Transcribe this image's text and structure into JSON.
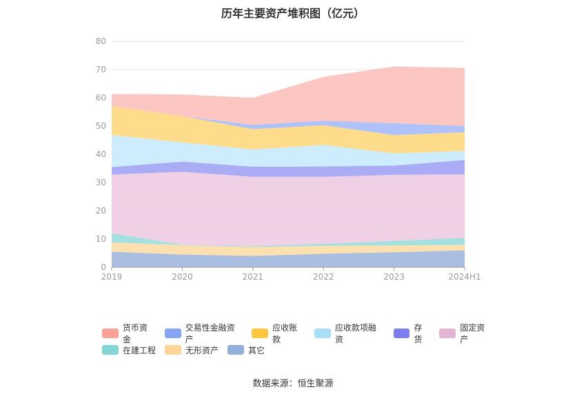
{
  "page": {
    "title": "历年主要资产堆积图（亿元）",
    "source": "数据来源：恒生聚源"
  },
  "chart_data": {
    "type": "area",
    "stacked": true,
    "title": "历年主要资产堆积图（亿元）",
    "xlabel": "",
    "ylabel": "",
    "categories": [
      "2019",
      "2020",
      "2021",
      "2022",
      "2023",
      "2024H1"
    ],
    "ylim": [
      0,
      80
    ],
    "yticks": [
      0,
      10,
      20,
      30,
      40,
      50,
      60,
      70,
      80
    ],
    "grid": true,
    "legend_position": "bottom",
    "series": [
      {
        "name": "其它",
        "color": "#9bb3dc",
        "values": [
          5.5,
          4.5,
          4.0,
          4.8,
          5.3,
          6.0
        ]
      },
      {
        "name": "无形资产",
        "color": "#fddba1",
        "values": [
          3.3,
          3.3,
          3.1,
          2.8,
          2.4,
          1.9
        ]
      },
      {
        "name": "在建工程",
        "color": "#95dbdb",
        "values": [
          3.2,
          0.2,
          0.3,
          0.7,
          1.6,
          2.5
        ]
      },
      {
        "name": "固定资产",
        "color": "#ecc8e0",
        "values": [
          20.8,
          25.8,
          24.6,
          23.7,
          23.4,
          22.5
        ]
      },
      {
        "name": "存货",
        "color": "#9b9ef5",
        "values": [
          2.7,
          3.6,
          3.6,
          3.7,
          3.3,
          5.1
        ]
      },
      {
        "name": "应收款项融资",
        "color": "#c5eafb",
        "values": [
          11.3,
          6.8,
          6.1,
          7.6,
          4.3,
          3.2
        ]
      },
      {
        "name": "应收账款",
        "color": "#fed677",
        "values": [
          10.3,
          9.3,
          7.2,
          7.0,
          6.5,
          6.6
        ]
      },
      {
        "name": "交易性金融资产",
        "color": "#a1b7f8",
        "values": [
          0,
          0,
          1.5,
          1.6,
          4.2,
          2.2
        ]
      },
      {
        "name": "货币资金",
        "color": "#fcbdb7",
        "values": [
          4.2,
          7.7,
          9.6,
          15.5,
          20.1,
          20.6
        ]
      }
    ],
    "legend": [
      {
        "name": "货币资金",
        "color": "#f8a298"
      },
      {
        "name": "交易性金融资产",
        "color": "#87a5f5"
      },
      {
        "name": "应收账款",
        "color": "#fec53f"
      },
      {
        "name": "应收款项融资",
        "color": "#a8e0fa"
      },
      {
        "name": "存货",
        "color": "#7c7ef0"
      },
      {
        "name": "固定资产",
        "color": "#e3b4d4"
      },
      {
        "name": "在建工程",
        "color": "#84d6d6"
      },
      {
        "name": "无形资产",
        "color": "#fed597"
      },
      {
        "name": "其它",
        "color": "#92b0db"
      }
    ]
  }
}
